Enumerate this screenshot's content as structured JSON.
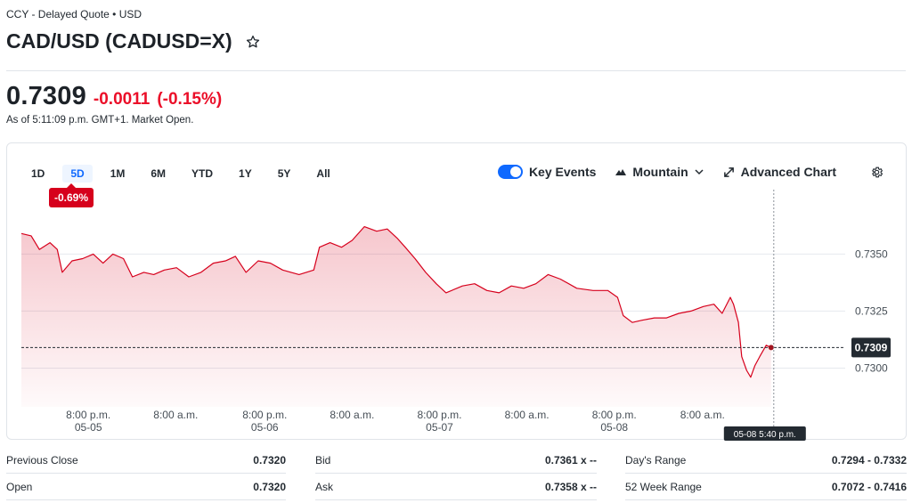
{
  "header": {
    "meta": "CCY - Delayed Quote • USD",
    "title": "CAD/USD (CADUSD=X)",
    "price": "0.7309",
    "change": "-0.0011",
    "change_pct": "(-0.15%)",
    "as_of": "As of 5:11:09 p.m. GMT+1. Market Open."
  },
  "chart_controls": {
    "ranges": [
      "1D",
      "5D",
      "1M",
      "6M",
      "YTD",
      "1Y",
      "5Y",
      "All"
    ],
    "active_range": "5D",
    "period_change": "-0.69%",
    "key_events_label": "Key Events",
    "chart_type_label": "Mountain",
    "advanced_label": "Advanced Chart"
  },
  "chart_data": {
    "type": "area",
    "title": "",
    "xlabel": "",
    "ylabel": "",
    "ylim": [
      0.7283,
      0.7372
    ],
    "y_ticks": [
      "0.7350",
      "0.7325",
      "0.7300"
    ],
    "y_tick_values": [
      0.735,
      0.7325,
      0.73
    ],
    "x_ticks": [
      {
        "time": "8:00 p.m.",
        "date": "05-05",
        "t": 0.082
      },
      {
        "time": "8:00 a.m.",
        "date": "",
        "t": 0.189
      },
      {
        "time": "8:00 p.m.",
        "date": "05-06",
        "t": 0.298
      },
      {
        "time": "8:00 a.m.",
        "date": "",
        "t": 0.405
      },
      {
        "time": "8:00 p.m.",
        "date": "05-07",
        "t": 0.512
      },
      {
        "time": "8:00 a.m.",
        "date": "",
        "t": 0.619
      },
      {
        "time": "8:00 p.m.",
        "date": "05-08",
        "t": 0.726
      },
      {
        "time": "8:00 a.m.",
        "date": "",
        "t": 0.834
      }
    ],
    "series": [
      {
        "color": "#d6001c",
        "values": [
          [
            0.0,
            0.7359
          ],
          [
            0.012,
            0.7358
          ],
          [
            0.022,
            0.7352
          ],
          [
            0.035,
            0.7355
          ],
          [
            0.044,
            0.7352
          ],
          [
            0.05,
            0.7342
          ],
          [
            0.062,
            0.7347
          ],
          [
            0.075,
            0.7348
          ],
          [
            0.088,
            0.735
          ],
          [
            0.1,
            0.7346
          ],
          [
            0.112,
            0.735
          ],
          [
            0.125,
            0.7348
          ],
          [
            0.136,
            0.734
          ],
          [
            0.15,
            0.7342
          ],
          [
            0.162,
            0.7341
          ],
          [
            0.175,
            0.7343
          ],
          [
            0.19,
            0.7344
          ],
          [
            0.205,
            0.734
          ],
          [
            0.22,
            0.7342
          ],
          [
            0.235,
            0.7346
          ],
          [
            0.25,
            0.7347
          ],
          [
            0.262,
            0.7349
          ],
          [
            0.275,
            0.7342
          ],
          [
            0.29,
            0.7347
          ],
          [
            0.305,
            0.7346
          ],
          [
            0.32,
            0.7343
          ],
          [
            0.34,
            0.7341
          ],
          [
            0.358,
            0.7343
          ],
          [
            0.365,
            0.7353
          ],
          [
            0.378,
            0.7355
          ],
          [
            0.392,
            0.7353
          ],
          [
            0.405,
            0.7356
          ],
          [
            0.42,
            0.7362
          ],
          [
            0.435,
            0.736
          ],
          [
            0.448,
            0.7361
          ],
          [
            0.46,
            0.7357
          ],
          [
            0.47,
            0.7353
          ],
          [
            0.482,
            0.7348
          ],
          [
            0.495,
            0.7342
          ],
          [
            0.508,
            0.7337
          ],
          [
            0.52,
            0.7333
          ],
          [
            0.54,
            0.7336
          ],
          [
            0.555,
            0.7337
          ],
          [
            0.57,
            0.7334
          ],
          [
            0.585,
            0.7333
          ],
          [
            0.6,
            0.7336
          ],
          [
            0.615,
            0.7335
          ],
          [
            0.63,
            0.7337
          ],
          [
            0.645,
            0.7341
          ],
          [
            0.66,
            0.7339
          ],
          [
            0.68,
            0.7335
          ],
          [
            0.7,
            0.7334
          ],
          [
            0.718,
            0.7334
          ],
          [
            0.73,
            0.7331
          ],
          [
            0.737,
            0.7323
          ],
          [
            0.748,
            0.732
          ],
          [
            0.76,
            0.7321
          ],
          [
            0.775,
            0.7322
          ],
          [
            0.79,
            0.7322
          ],
          [
            0.805,
            0.7324
          ],
          [
            0.82,
            0.7325
          ],
          [
            0.835,
            0.7327
          ],
          [
            0.848,
            0.7328
          ],
          [
            0.858,
            0.7324
          ],
          [
            0.868,
            0.7331
          ],
          [
            0.872,
            0.7328
          ],
          [
            0.878,
            0.732
          ],
          [
            0.882,
            0.7305
          ],
          [
            0.888,
            0.7299
          ],
          [
            0.893,
            0.7296
          ],
          [
            0.898,
            0.7301
          ],
          [
            0.904,
            0.7305
          ],
          [
            0.912,
            0.731
          ],
          [
            0.918,
            0.7309
          ]
        ]
      }
    ],
    "current_value_label": "0.7309",
    "crosshair_label": "05-08 5:40 p.m."
  },
  "stats": [
    {
      "label": "Previous Close",
      "value": "0.7320"
    },
    {
      "label": "Bid",
      "value": "0.7361 x --"
    },
    {
      "label": "Day's Range",
      "value": "0.7294 - 0.7332"
    },
    {
      "label": "Open",
      "value": "0.7320"
    },
    {
      "label": "Ask",
      "value": "0.7358 x --"
    },
    {
      "label": "52 Week Range",
      "value": "0.7072 - 0.7416"
    }
  ],
  "colors": {
    "accent": "#0f69ff",
    "negative": "#eb0f29",
    "badge": "#d6001c",
    "line": "#d6001c"
  }
}
